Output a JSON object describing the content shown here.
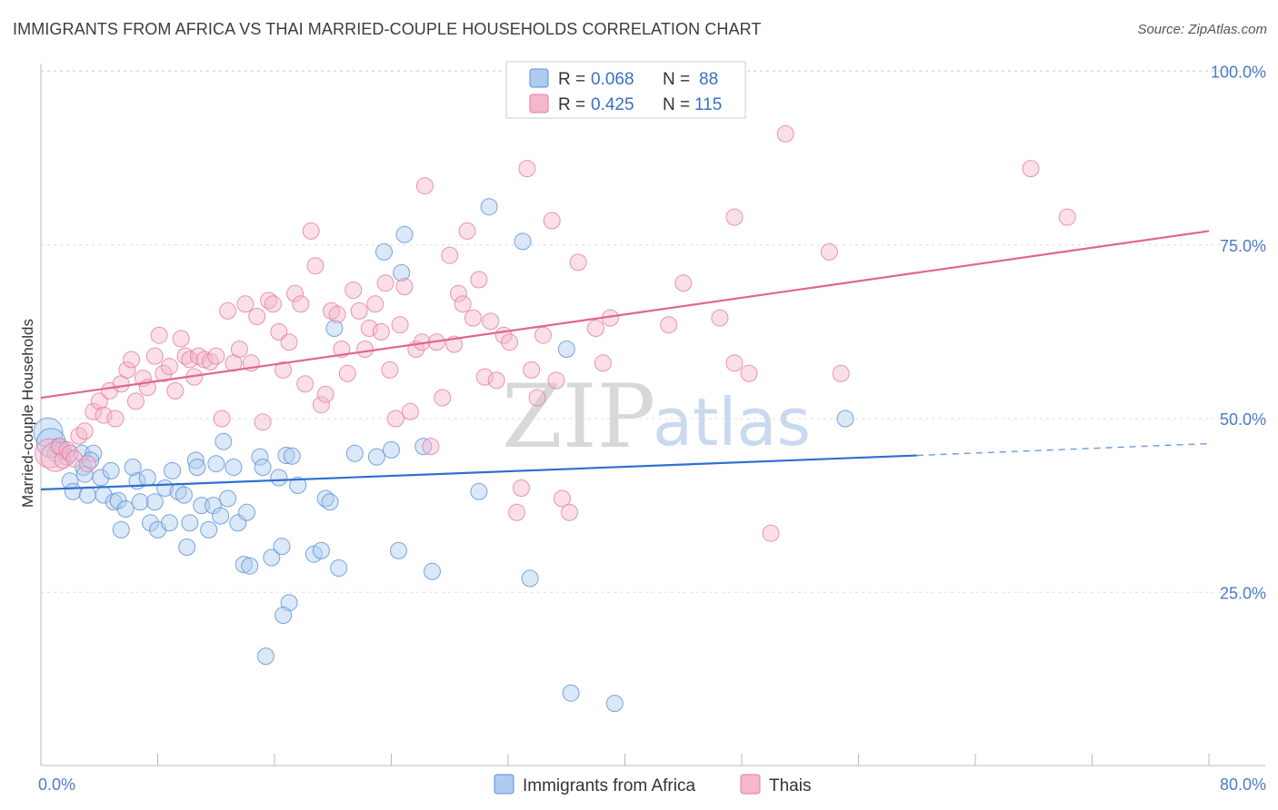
{
  "title": "IMMIGRANTS FROM AFRICA VS THAI MARRIED-COUPLE HOUSEHOLDS CORRELATION CHART",
  "source": "Source: ZipAtlas.com",
  "watermark": {
    "zip": "ZIP",
    "atlas": "atlas"
  },
  "colors": {
    "blue_fill": "#aecbf0",
    "blue_stroke": "#5b8fd6",
    "blue_line": "#2f6fd0",
    "pink_fill": "#f5b7cb",
    "pink_stroke": "#e57ba0",
    "pink_line": "#e0668f",
    "grid": "#dddddd",
    "tick_text": "#4a7cc4"
  },
  "legend": {
    "rows": [
      {
        "r_label": "R = ",
        "r_value": "0.068",
        "n_label": "N = ",
        "n_value": "88"
      },
      {
        "r_label": "R = ",
        "r_value": "0.425",
        "n_label": "N = ",
        "n_value": "115"
      }
    ]
  },
  "bottom_legend": [
    "Immigrants from Africa",
    "Thais"
  ],
  "chart_data": {
    "type": "scatter",
    "title": "IMMIGRANTS FROM AFRICA VS THAI MARRIED-COUPLE HOUSEHOLDS CORRELATION CHART",
    "xlabel": "",
    "ylabel": "Married-couple Households",
    "xlim": [
      0,
      80
    ],
    "ylim": [
      0,
      104
    ],
    "x_tick_labels": [
      "0.0%",
      "80.0%"
    ],
    "y_ticks": [
      25,
      50,
      75,
      100
    ],
    "y_tick_labels": [
      "25.0%",
      "50.0%",
      "75.0%",
      "100.0%"
    ],
    "grid": true,
    "legend_position": "top-center",
    "series": [
      {
        "name": "Immigrants from Africa",
        "R": 0.068,
        "N": 88,
        "trend": {
          "x0": 0,
          "y0": 39.8,
          "x1": 60,
          "y1": 44.7,
          "dashed_to_x": 80,
          "dashed_to_y": 46.4
        },
        "points": [
          [
            0.5,
            48
          ],
          [
            0.7,
            46.5
          ],
          [
            1.0,
            45
          ],
          [
            1.2,
            46
          ],
          [
            1.5,
            45.5
          ],
          [
            1.8,
            44.5
          ],
          [
            2.0,
            41
          ],
          [
            2.2,
            39.5
          ],
          [
            2.8,
            45
          ],
          [
            2.9,
            43
          ],
          [
            3.0,
            42
          ],
          [
            3.2,
            39
          ],
          [
            3.6,
            45
          ],
          [
            3.4,
            44
          ],
          [
            4.1,
            41.5
          ],
          [
            4.3,
            39
          ],
          [
            4.8,
            42.5
          ],
          [
            5.0,
            38
          ],
          [
            5.3,
            38.2
          ],
          [
            5.5,
            34
          ],
          [
            5.8,
            37
          ],
          [
            6.3,
            43
          ],
          [
            6.6,
            41
          ],
          [
            6.8,
            38
          ],
          [
            7.3,
            41.5
          ],
          [
            7.5,
            35
          ],
          [
            7.8,
            38
          ],
          [
            8.0,
            34
          ],
          [
            8.5,
            40
          ],
          [
            8.8,
            35
          ],
          [
            9.0,
            42.5
          ],
          [
            9.4,
            39.5
          ],
          [
            9.8,
            39
          ],
          [
            10.0,
            31.5
          ],
          [
            10.2,
            35
          ],
          [
            10.6,
            44
          ],
          [
            10.7,
            43
          ],
          [
            11.0,
            37.5
          ],
          [
            11.5,
            34
          ],
          [
            11.8,
            37.5
          ],
          [
            12.0,
            43.5
          ],
          [
            12.3,
            36
          ],
          [
            12.5,
            46.7
          ],
          [
            12.8,
            38.5
          ],
          [
            13.2,
            43
          ],
          [
            13.5,
            35
          ],
          [
            13.9,
            29
          ],
          [
            14.3,
            28.8
          ],
          [
            14.1,
            36.5
          ],
          [
            15.0,
            44.5
          ],
          [
            15.2,
            43
          ],
          [
            15.8,
            30
          ],
          [
            16.3,
            41.5
          ],
          [
            16.5,
            31.6
          ],
          [
            16.8,
            44.7
          ],
          [
            17.2,
            44.6
          ],
          [
            17.6,
            40.4
          ],
          [
            17.0,
            23.5
          ],
          [
            16.6,
            21.7
          ],
          [
            15.4,
            15.8
          ],
          [
            18.7,
            30.5
          ],
          [
            19.2,
            31
          ],
          [
            19.5,
            38.5
          ],
          [
            19.8,
            38
          ],
          [
            20.1,
            63
          ],
          [
            20.4,
            28.5
          ],
          [
            21.5,
            45
          ],
          [
            23.0,
            44.5
          ],
          [
            23.5,
            74
          ],
          [
            24.0,
            45.5
          ],
          [
            24.5,
            31
          ],
          [
            24.7,
            71
          ],
          [
            24.9,
            76.5
          ],
          [
            26.2,
            46
          ],
          [
            26.8,
            28
          ],
          [
            30.0,
            39.5
          ],
          [
            30.7,
            80.5
          ],
          [
            33.0,
            75.5
          ],
          [
            33.5,
            27
          ],
          [
            36.0,
            60
          ],
          [
            36.3,
            10.5
          ],
          [
            39.3,
            9
          ],
          [
            55.1,
            50
          ]
        ]
      },
      {
        "name": "Thais",
        "R": 0.425,
        "N": 115,
        "trend": {
          "x0": 0,
          "y0": 53,
          "x1": 80,
          "y1": 77
        },
        "points": [
          [
            0.6,
            45
          ],
          [
            1.0,
            44.5
          ],
          [
            1.3,
            46
          ],
          [
            1.5,
            44
          ],
          [
            1.8,
            45.5
          ],
          [
            2.0,
            45
          ],
          [
            2.3,
            44.2
          ],
          [
            2.6,
            47.5
          ],
          [
            3.0,
            48.2
          ],
          [
            3.2,
            43.5
          ],
          [
            3.6,
            51
          ],
          [
            4.0,
            52.5
          ],
          [
            4.3,
            50.5
          ],
          [
            4.7,
            54
          ],
          [
            5.1,
            50
          ],
          [
            5.5,
            55
          ],
          [
            5.9,
            57
          ],
          [
            6.2,
            58.5
          ],
          [
            6.5,
            52.5
          ],
          [
            7.0,
            55.8
          ],
          [
            7.3,
            54.5
          ],
          [
            7.8,
            59
          ],
          [
            8.1,
            62
          ],
          [
            8.4,
            56.5
          ],
          [
            8.8,
            57.5
          ],
          [
            9.2,
            54
          ],
          [
            9.6,
            61.5
          ],
          [
            9.9,
            59
          ],
          [
            10.2,
            58.5
          ],
          [
            10.5,
            56
          ],
          [
            10.8,
            59
          ],
          [
            11.2,
            58.5
          ],
          [
            11.6,
            58.2
          ],
          [
            12.0,
            59
          ],
          [
            12.4,
            50
          ],
          [
            12.8,
            65.5
          ],
          [
            13.2,
            58
          ],
          [
            13.6,
            60
          ],
          [
            14.0,
            66.5
          ],
          [
            14.4,
            58
          ],
          [
            14.8,
            64.7
          ],
          [
            15.2,
            49.5
          ],
          [
            15.6,
            67
          ],
          [
            15.9,
            66.5
          ],
          [
            16.3,
            62.5
          ],
          [
            16.6,
            57
          ],
          [
            17.0,
            61
          ],
          [
            17.4,
            68
          ],
          [
            17.8,
            66.5
          ],
          [
            18.1,
            55
          ],
          [
            18.5,
            77
          ],
          [
            18.8,
            72
          ],
          [
            19.2,
            52
          ],
          [
            19.5,
            53.5
          ],
          [
            19.9,
            65.5
          ],
          [
            20.3,
            65
          ],
          [
            20.6,
            60
          ],
          [
            21.0,
            56.5
          ],
          [
            21.4,
            68.5
          ],
          [
            21.8,
            65.5
          ],
          [
            22.2,
            60
          ],
          [
            22.5,
            63
          ],
          [
            22.9,
            66.5
          ],
          [
            23.3,
            62.5
          ],
          [
            23.6,
            69.5
          ],
          [
            23.9,
            57
          ],
          [
            24.3,
            50
          ],
          [
            24.6,
            63.5
          ],
          [
            24.9,
            69
          ],
          [
            25.3,
            51
          ],
          [
            25.7,
            60
          ],
          [
            26.1,
            61
          ],
          [
            26.3,
            83.5
          ],
          [
            26.7,
            46
          ],
          [
            27.1,
            61
          ],
          [
            27.5,
            53
          ],
          [
            28.0,
            73.5
          ],
          [
            28.3,
            60.7
          ],
          [
            28.6,
            68
          ],
          [
            28.9,
            66.5
          ],
          [
            29.2,
            77
          ],
          [
            29.6,
            64.5
          ],
          [
            30.0,
            70
          ],
          [
            30.4,
            56
          ],
          [
            30.8,
            64
          ],
          [
            31.2,
            55.5
          ],
          [
            31.7,
            62
          ],
          [
            32.1,
            61
          ],
          [
            32.6,
            36.5
          ],
          [
            32.9,
            40
          ],
          [
            33.3,
            86
          ],
          [
            33.6,
            57
          ],
          [
            34.0,
            53
          ],
          [
            34.4,
            62
          ],
          [
            35.0,
            78.5
          ],
          [
            35.3,
            55.5
          ],
          [
            35.7,
            38.5
          ],
          [
            36.2,
            36.5
          ],
          [
            36.8,
            72.5
          ],
          [
            38.0,
            63
          ],
          [
            38.5,
            58
          ],
          [
            39.0,
            64.5
          ],
          [
            43.0,
            63.5
          ],
          [
            44.0,
            69.5
          ],
          [
            46.5,
            64.5
          ],
          [
            47.5,
            58
          ],
          [
            48.5,
            56.5
          ],
          [
            47.5,
            79
          ],
          [
            50.0,
            33.5
          ],
          [
            51.0,
            91
          ],
          [
            54.0,
            74
          ],
          [
            54.8,
            56.5
          ],
          [
            67.8,
            86
          ],
          [
            70.3,
            79
          ]
        ]
      }
    ]
  }
}
